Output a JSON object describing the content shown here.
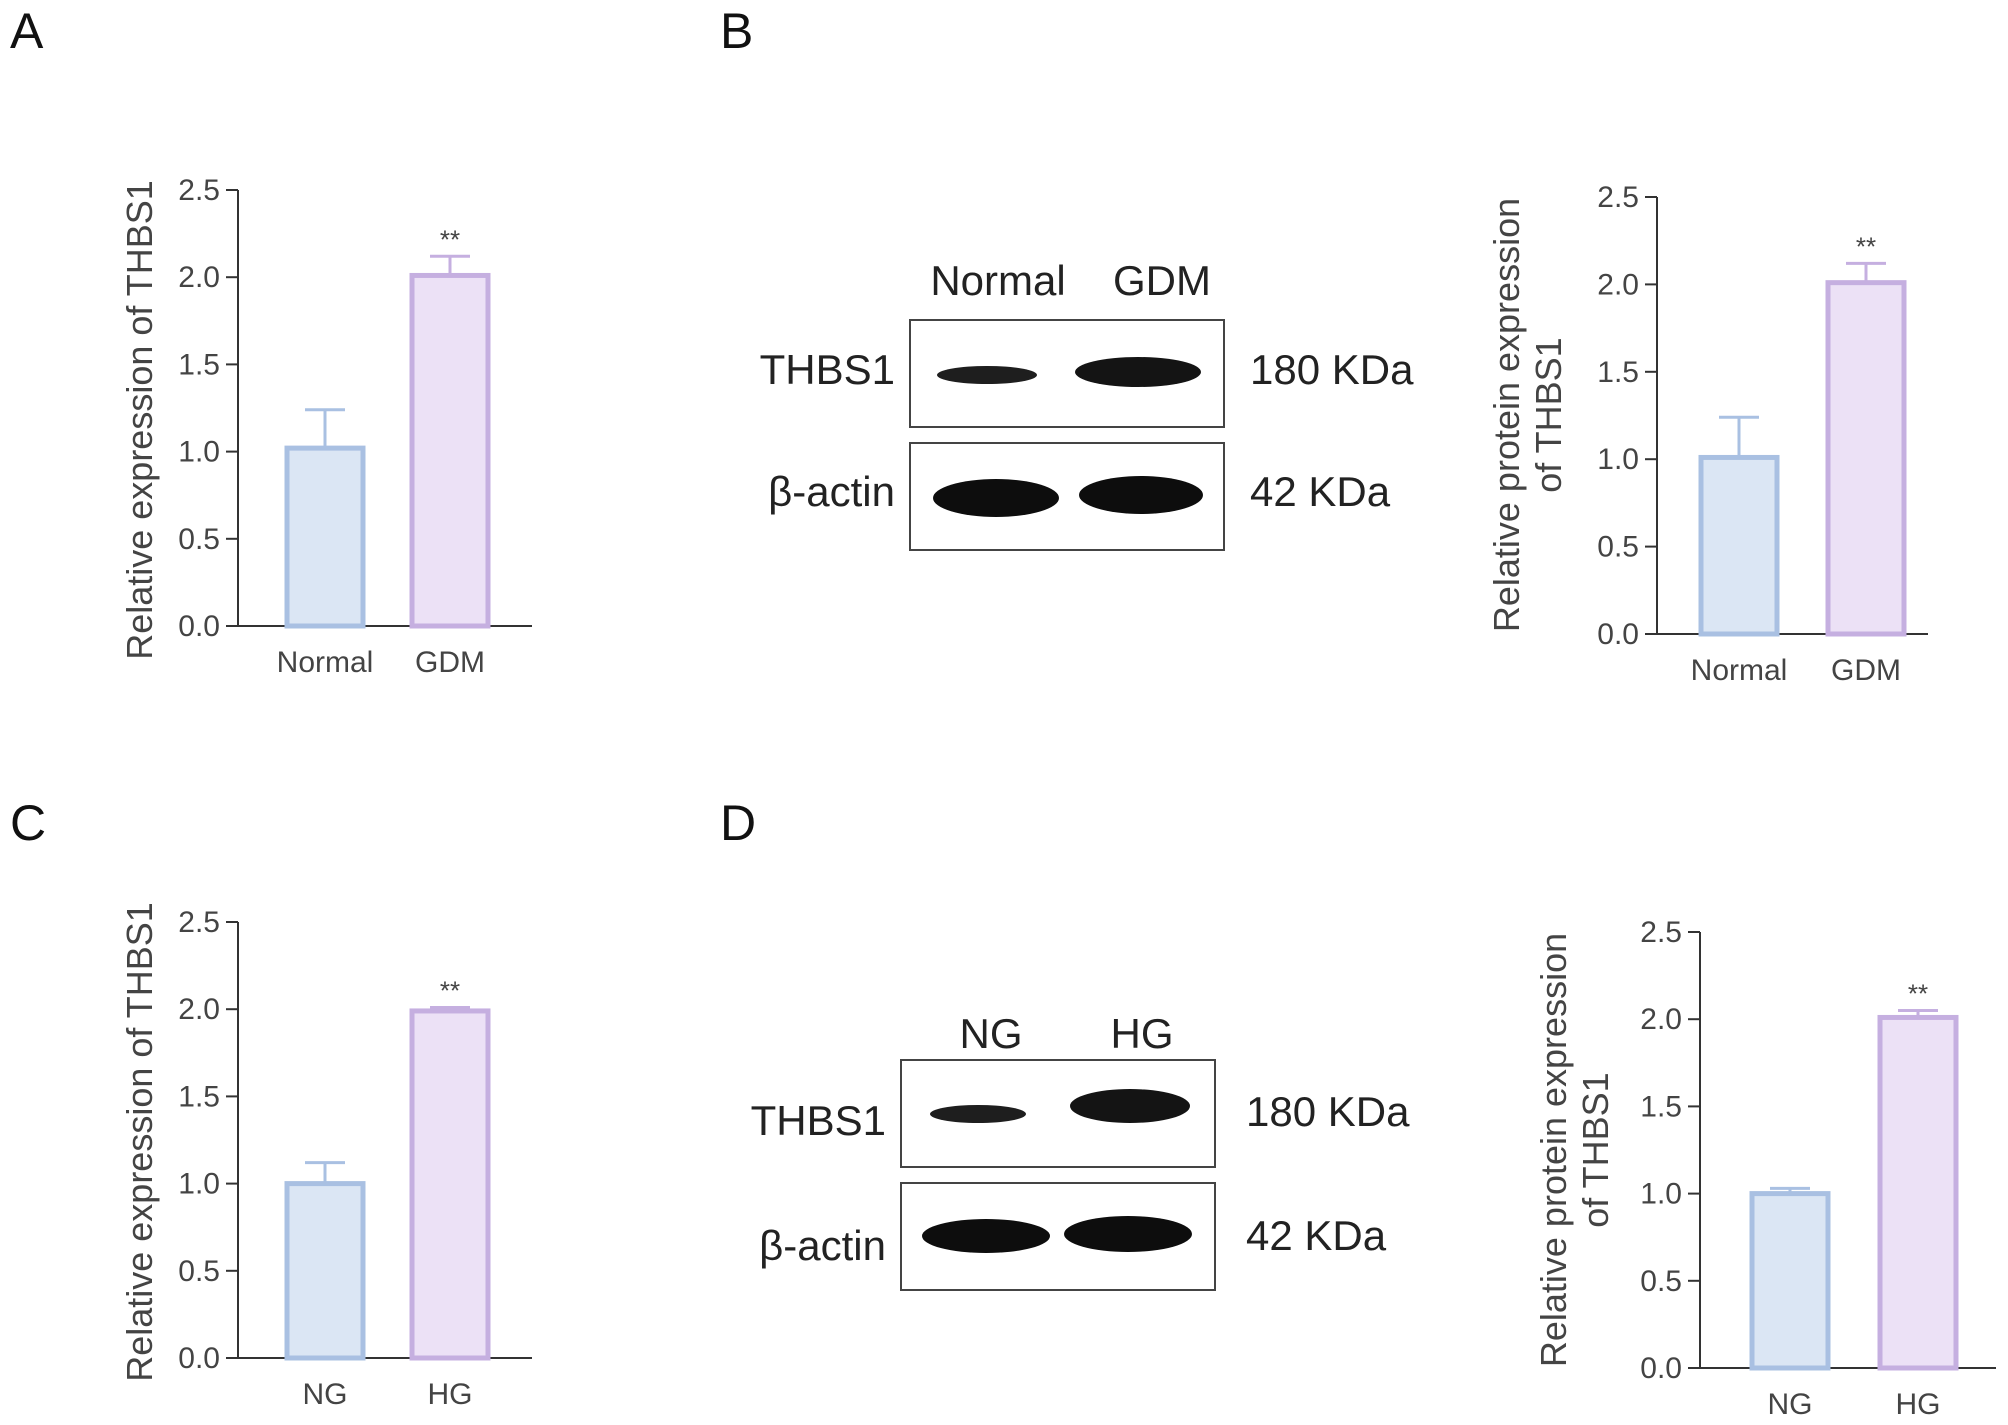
{
  "panels": [
    {
      "letter": "A"
    },
    {
      "letter": "B"
    },
    {
      "letter": "C"
    },
    {
      "letter": "D"
    }
  ],
  "blots": [
    {
      "lane_labels": [
        "Normal",
        "GDM"
      ],
      "rows": [
        {
          "protein": "THBS1",
          "size": "180 KDa"
        },
        {
          "protein": "β-actin",
          "size": "42 KDa"
        }
      ]
    },
    {
      "lane_labels": [
        "NG",
        "HG"
      ],
      "rows": [
        {
          "protein": "THBS1",
          "size": "180 KDa"
        },
        {
          "protein": "β-actin",
          "size": "42 KDa"
        }
      ]
    }
  ],
  "chart_data": [
    {
      "panel": "A",
      "type": "bar",
      "categories": [
        "Normal",
        "GDM"
      ],
      "values": [
        1.02,
        2.01
      ],
      "error": [
        0.22,
        0.11
      ],
      "significance": [
        "",
        "**"
      ],
      "ylabel": "Relative expression of THBS1",
      "xlabel": "",
      "ylim": [
        0,
        2.5
      ],
      "yticks": [
        "0.0",
        "0.5",
        "1.0",
        "1.5",
        "2.0",
        "2.5"
      ],
      "bar_colors": [
        "#dbe6f4",
        "#ece1f6"
      ],
      "bar_edge_colors": [
        "#a9c0e2",
        "#c5afe0"
      ]
    },
    {
      "panel": "B",
      "type": "bar",
      "categories": [
        "Normal",
        "GDM"
      ],
      "values": [
        1.01,
        2.01
      ],
      "error": [
        0.23,
        0.11
      ],
      "significance": [
        "",
        "**"
      ],
      "ylabel": "Relative protein expression of THBS1",
      "ylabel_lines": [
        "Relative protein expression",
        "of THBS1"
      ],
      "xlabel": "",
      "ylim": [
        0,
        2.5
      ],
      "yticks": [
        "0.0",
        "0.5",
        "1.0",
        "1.5",
        "2.0",
        "2.5"
      ],
      "bar_colors": [
        "#dbe6f4",
        "#ece1f6"
      ],
      "bar_edge_colors": [
        "#a9c0e2",
        "#c5afe0"
      ]
    },
    {
      "panel": "C",
      "type": "bar",
      "categories": [
        "NG",
        "HG"
      ],
      "values": [
        1.0,
        1.99
      ],
      "error": [
        0.12,
        0.02
      ],
      "significance": [
        "",
        "**"
      ],
      "ylabel": "Relative expression of THBS1",
      "xlabel": "",
      "ylim": [
        0,
        2.5
      ],
      "yticks": [
        "0.0",
        "0.5",
        "1.0",
        "1.5",
        "2.0",
        "2.5"
      ],
      "bar_colors": [
        "#dbe6f4",
        "#ece1f6"
      ],
      "bar_edge_colors": [
        "#a9c0e2",
        "#c5afe0"
      ]
    },
    {
      "panel": "D",
      "type": "bar",
      "categories": [
        "NG",
        "HG"
      ],
      "values": [
        1.0,
        2.01
      ],
      "error": [
        0.03,
        0.04
      ],
      "significance": [
        "",
        "**"
      ],
      "ylabel": "Relative protein expression of THBS1",
      "ylabel_lines": [
        "Relative protein expression",
        "of THBS1"
      ],
      "xlabel": "",
      "ylim": [
        0,
        2.5
      ],
      "yticks": [
        "0.0",
        "0.5",
        "1.0",
        "1.5",
        "2.0",
        "2.5"
      ],
      "bar_colors": [
        "#dbe6f4",
        "#ece1f6"
      ],
      "bar_edge_colors": [
        "#a9c0e2",
        "#c5afe0"
      ]
    }
  ]
}
